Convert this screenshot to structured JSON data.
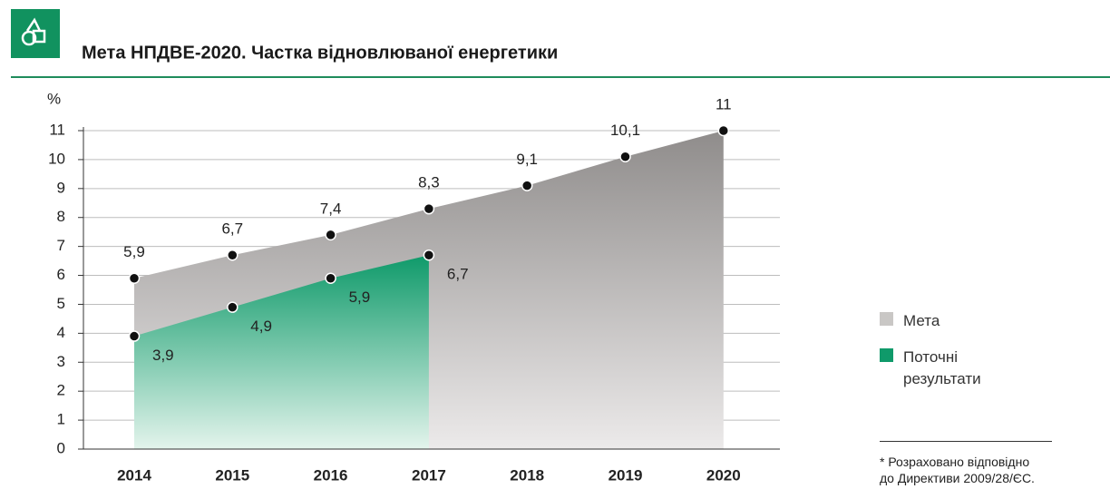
{
  "chart_data": {
    "type": "area",
    "title": "Мета НПДВЕ-2020. Частка відновлюваної енергетики",
    "y_label": "%",
    "categories": [
      "2014",
      "2015",
      "2016",
      "2017",
      "2018",
      "2019",
      "2020"
    ],
    "series": [
      {
        "name": "Мета",
        "color": "#c9c7c5",
        "values": [
          5.9,
          6.7,
          7.4,
          8.3,
          9.1,
          10.1,
          11
        ],
        "value_labels": [
          "5,9",
          "6,7",
          "7,4",
          "8,3",
          "9,1",
          "10,1",
          "11"
        ]
      },
      {
        "name": "Поточні результати",
        "color": "#0f9a6a",
        "values": [
          3.9,
          4.9,
          5.9,
          6.7,
          null,
          null,
          null
        ],
        "value_labels": [
          "3,9",
          "4,9",
          "5,9",
          "6,7",
          null,
          null,
          null
        ]
      }
    ],
    "ylim": [
      0,
      11
    ],
    "yticks": [
      0,
      1,
      2,
      3,
      4,
      5,
      6,
      7,
      8,
      9,
      10,
      11
    ],
    "grid": true,
    "legend": "right",
    "footnote": [
      "* Розраховано відповідно",
      "до Директиви 2009/28/ЄС."
    ]
  }
}
